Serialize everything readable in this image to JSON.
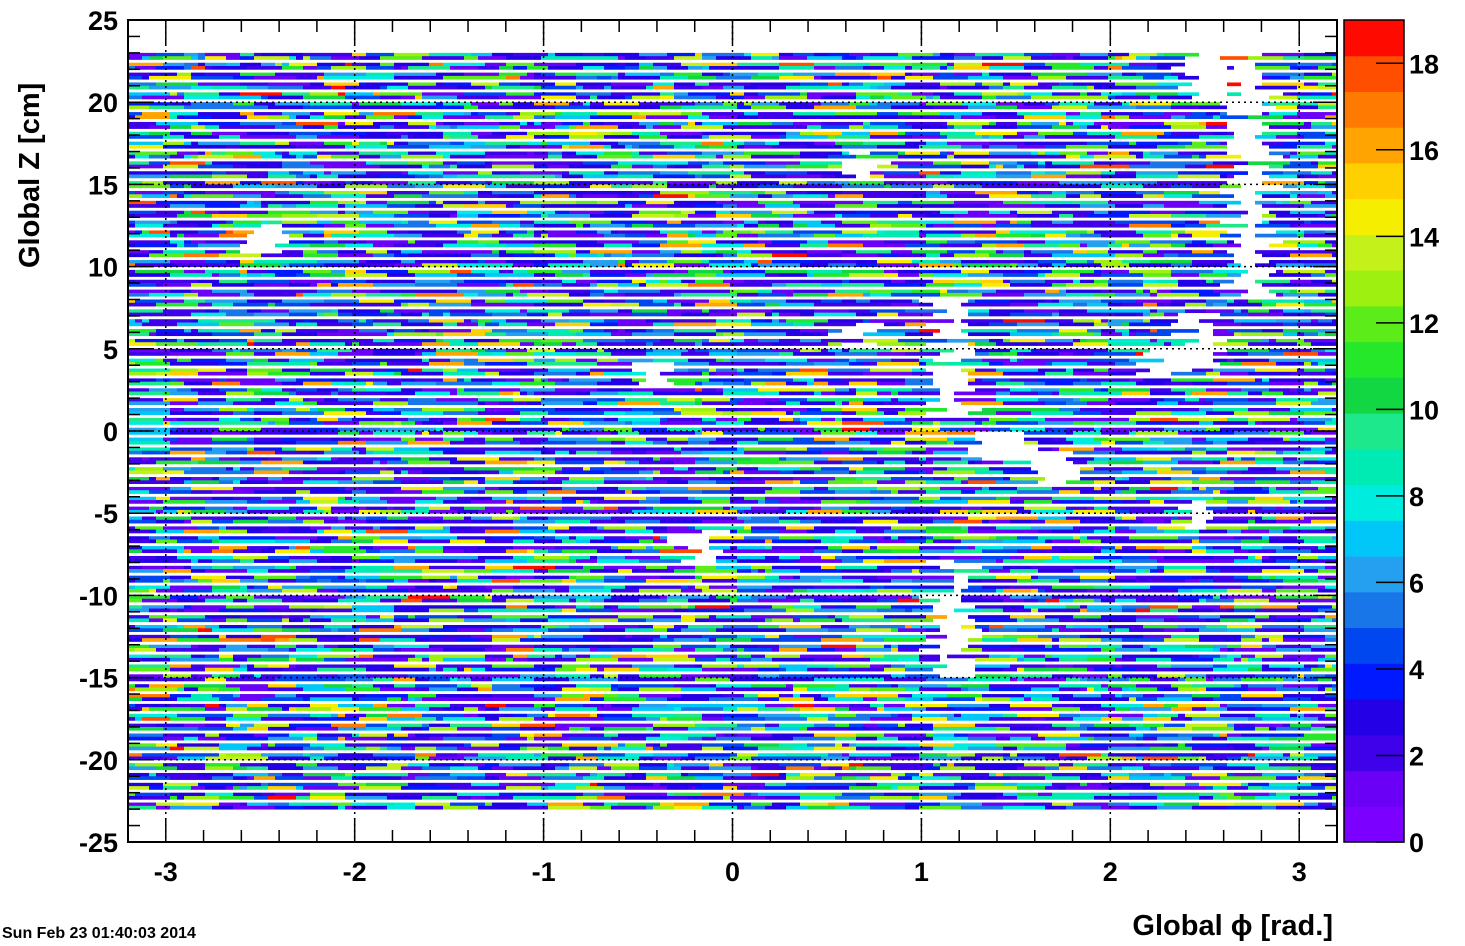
{
  "chart_data": {
    "type": "heatmap",
    "title": "",
    "xlabel": "Global ϕ [rad.]",
    "ylabel": "Global Z [cm]",
    "xlim": [
      -3.2,
      3.2
    ],
    "ylim": [
      -25,
      25
    ],
    "x_ticks": [
      "-3",
      "-2",
      "-1",
      "0",
      "1",
      "2",
      "3"
    ],
    "y_ticks": [
      "25",
      "20",
      "15",
      "10",
      "5",
      "0",
      "-5",
      "-10",
      "-15",
      "-20",
      "-25"
    ],
    "z_range": [
      0,
      19
    ],
    "z_ticks": [
      "18",
      "16",
      "14",
      "12",
      "10",
      "8",
      "6",
      "4",
      "2",
      "0"
    ],
    "grid": true,
    "occupied_z_range": [
      -23,
      23
    ],
    "empty_regions": [
      {
        "phi": [
          -2.56,
          -2.4
        ],
        "z": [
          10.3,
          12.6
        ]
      },
      {
        "phi": [
          0.6,
          0.75
        ],
        "z": [
          15.4,
          17.1
        ]
      },
      {
        "phi": [
          0.58,
          0.75
        ],
        "z": [
          5.1,
          6.6
        ]
      },
      {
        "phi": [
          1.08,
          1.24
        ],
        "z": [
          0.5,
          8.0
        ]
      },
      {
        "phi": [
          1.32,
          1.57
        ],
        "z": [
          -1.9,
          0.0
        ]
      },
      {
        "phi": [
          1.57,
          1.8
        ],
        "z": [
          -3.2,
          -1.3
        ]
      },
      {
        "phi": [
          -0.48,
          -0.28
        ],
        "z": [
          2.6,
          4.2
        ]
      },
      {
        "phi": [
          -0.25,
          -0.07
        ],
        "z": [
          -8.0,
          -6.1
        ]
      },
      {
        "phi": [
          2.4,
          2.55
        ],
        "z": [
          4.1,
          7.1
        ]
      },
      {
        "phi": [
          2.2,
          2.4
        ],
        "z": [
          3.2,
          5.2
        ]
      },
      {
        "phi": [
          2.4,
          2.55
        ],
        "z": [
          -6.0,
          -4.3
        ]
      },
      {
        "phi": [
          2.66,
          2.82
        ],
        "z": [
          8.1,
          23.0
        ]
      },
      {
        "phi": [
          1.08,
          1.24
        ],
        "z": [
          -15.0,
          -7.8
        ]
      },
      {
        "phi": [
          2.42,
          2.62
        ],
        "z": [
          20.1,
          23.0
        ]
      }
    ],
    "colormap": [
      "#7b00ff",
      "#6a00f5",
      "#3f00ea",
      "#2400e6",
      "#0019ff",
      "#0047ef",
      "#1976e8",
      "#25a0f0",
      "#00c7f7",
      "#00ecde",
      "#00ebb4",
      "#1de88c",
      "#12d742",
      "#26e82a",
      "#5cec19",
      "#9df00f",
      "#c4f11a",
      "#f6ee00",
      "#ffd000",
      "#ffa400",
      "#ff7a00",
      "#ff4e00",
      "#ff0a00"
    ]
  },
  "timestamp": "Sun Feb 23 01:40:03 2014"
}
